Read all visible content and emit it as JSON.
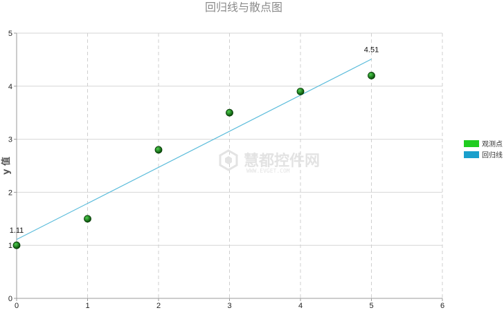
{
  "chart_data": {
    "type": "scatter",
    "title": "回归线与散点图",
    "xlabel": "",
    "ylabel": "y 值",
    "xlim": [
      0,
      6
    ],
    "ylim": [
      0,
      5
    ],
    "xticks": [
      "0",
      "1",
      "2",
      "3",
      "4",
      "5",
      "6"
    ],
    "yticks": [
      "0",
      "1",
      "2",
      "3",
      "4",
      "5"
    ],
    "grid": true,
    "legend_position": "right",
    "series": [
      {
        "name": "观测点",
        "kind": "scatter",
        "color": "#1fcc1f",
        "marker_color": "#0a6e0a",
        "x": [
          0,
          1,
          2,
          3,
          4,
          5
        ],
        "y": [
          1.0,
          1.5,
          2.8,
          3.5,
          3.9,
          4.2
        ]
      },
      {
        "name": "回归线",
        "kind": "line",
        "color": "#1a9fcc",
        "line_color": "#5bbcdb",
        "x": [
          0,
          5
        ],
        "y": [
          1.11,
          4.51
        ],
        "labels": [
          "1.11",
          "4.51"
        ]
      }
    ]
  },
  "watermark": {
    "text": "慧都控件网",
    "sub": "WWW.EVGET.COM"
  }
}
